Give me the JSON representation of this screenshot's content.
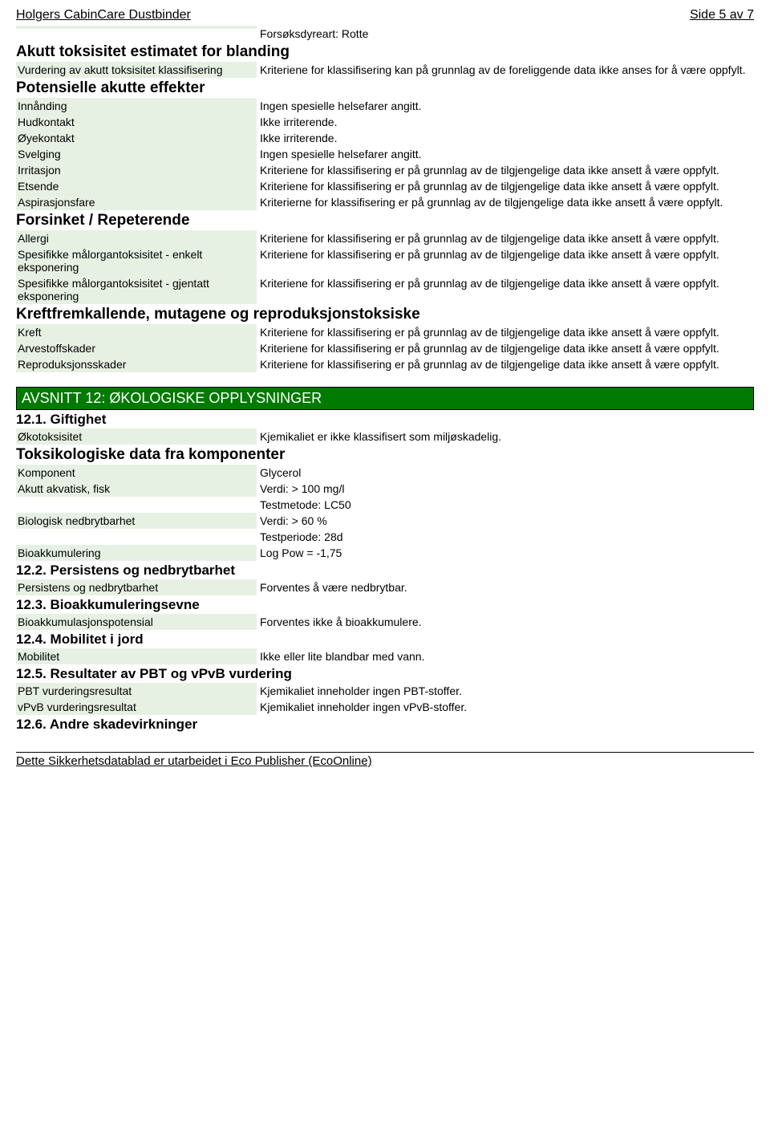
{
  "header": {
    "title": "Holgers CabinCare Dustbinder",
    "page": "Side 5 av 7"
  },
  "preRow": {
    "value": "Forsøksdyreart: Rotte"
  },
  "sec1": {
    "title": "Akutt toksisitet estimatet for blanding"
  },
  "r1": {
    "label": "Vurdering av akutt toksisitet klassifisering",
    "value": "Kriteriene for klassifisering kan på grunnlag av de foreliggende data ikke anses for å være oppfylt."
  },
  "sec2": {
    "title": "Potensielle akutte effekter"
  },
  "r2": {
    "label": "Innånding",
    "value": "Ingen spesielle helsefarer angitt."
  },
  "r3": {
    "label": "Hudkontakt",
    "value": "Ikke irriterende."
  },
  "r4": {
    "label": "Øyekontakt",
    "value": "Ikke irriterende."
  },
  "r5": {
    "label": "Svelging",
    "value": "Ingen spesielle helsefarer angitt."
  },
  "r6": {
    "label": "Irritasjon",
    "value": "Kriteriene for klassifisering er på grunnlag av de tilgjengelige data ikke ansett å være oppfylt."
  },
  "r7": {
    "label": "Etsende",
    "value": "Kriteriene for klassifisering er på grunnlag av de tilgjengelige data ikke ansett å være oppfylt."
  },
  "r8": {
    "label": "Aspirasjonsfare",
    "value": "Kriterierne for klassifisering er på grunnlag av de tilgjengelige data ikke ansett å være oppfylt."
  },
  "sec3": {
    "title": "Forsinket / Repeterende"
  },
  "r9": {
    "label": "Allergi",
    "value": "Kriteriene for klassifisering er på grunnlag av de tilgjengelige data ikke ansett å være oppfylt."
  },
  "r10": {
    "label": "Spesifikke målorgantoksisitet - enkelt eksponering",
    "value": "Kriteriene for klassifisering er på grunnlag av de tilgjengelige data ikke ansett å være oppfylt."
  },
  "r11": {
    "label": "Spesifikke målorgantoksisitet - gjentatt eksponering",
    "value": "Kriteriene for klassifisering er på grunnlag av de tilgjengelige data ikke ansett å være oppfylt."
  },
  "sec4": {
    "title": "Kreftfremkallende, mutagene og reproduksjonstoksiske"
  },
  "r12": {
    "label": "Kreft",
    "value": "Kriteriene for klassifisering er på grunnlag av de tilgjengelige data ikke ansett å være oppfylt."
  },
  "r13": {
    "label": "Arvestoffskader",
    "value": "Kriteriene for klassifisering er på grunnlag av de tilgjengelige data ikke ansett å være oppfylt."
  },
  "r14": {
    "label": "Reproduksjonsskader",
    "value": "Kriteriene for klassifisering er på grunnlag av de tilgjengelige data ikke ansett å være oppfylt."
  },
  "greenBar": "AVSNITT 12: ØKOLOGISKE OPPLYSNINGER",
  "sec12_1": {
    "title": "12.1. Giftighet"
  },
  "r15": {
    "label": "Økotoksisitet",
    "value": "Kjemikaliet er ikke klassifisert som miljøskadelig."
  },
  "sec12_1b": {
    "title": "Toksikologiske data fra komponenter"
  },
  "r16": {
    "label": "Komponent",
    "value": "Glycerol"
  },
  "r17": {
    "label": "Akutt akvatisk, fisk",
    "value": "Verdi: > 100 mg/l"
  },
  "r17b": {
    "value": "Testmetode: LC50"
  },
  "r18": {
    "label": "Biologisk nedbrytbarhet",
    "value": "Verdi: > 60 %"
  },
  "r18b": {
    "value": "Testperiode: 28d"
  },
  "r19": {
    "label": "Bioakkumulering",
    "value": "Log Pow = -1,75"
  },
  "sec12_2": {
    "title": "12.2. Persistens og nedbrytbarhet"
  },
  "r20": {
    "label": "Persistens og nedbrytbarhet",
    "value": "Forventes å være nedbrytbar."
  },
  "sec12_3": {
    "title": "12.3. Bioakkumuleringsevne"
  },
  "r21": {
    "label": "Bioakkumulasjonspotensial",
    "value": "Forventes ikke å bioakkumulere."
  },
  "sec12_4": {
    "title": "12.4. Mobilitet i jord"
  },
  "r22": {
    "label": "Mobilitet",
    "value": "Ikke eller lite blandbar med vann."
  },
  "sec12_5": {
    "title": "12.5. Resultater av PBT og vPvB vurdering"
  },
  "r23": {
    "label": "PBT vurderingsresultat",
    "value": "Kjemikaliet inneholder ingen PBT-stoffer."
  },
  "r24": {
    "label": "vPvB vurderingsresultat",
    "value": "Kjemikaliet inneholder ingen vPvB-stoffer."
  },
  "sec12_6": {
    "title": "12.6. Andre skadevirkninger"
  },
  "footer": "Dette Sikkerhetsdatablad er utarbeidet i Eco Publisher (EcoOnline)"
}
